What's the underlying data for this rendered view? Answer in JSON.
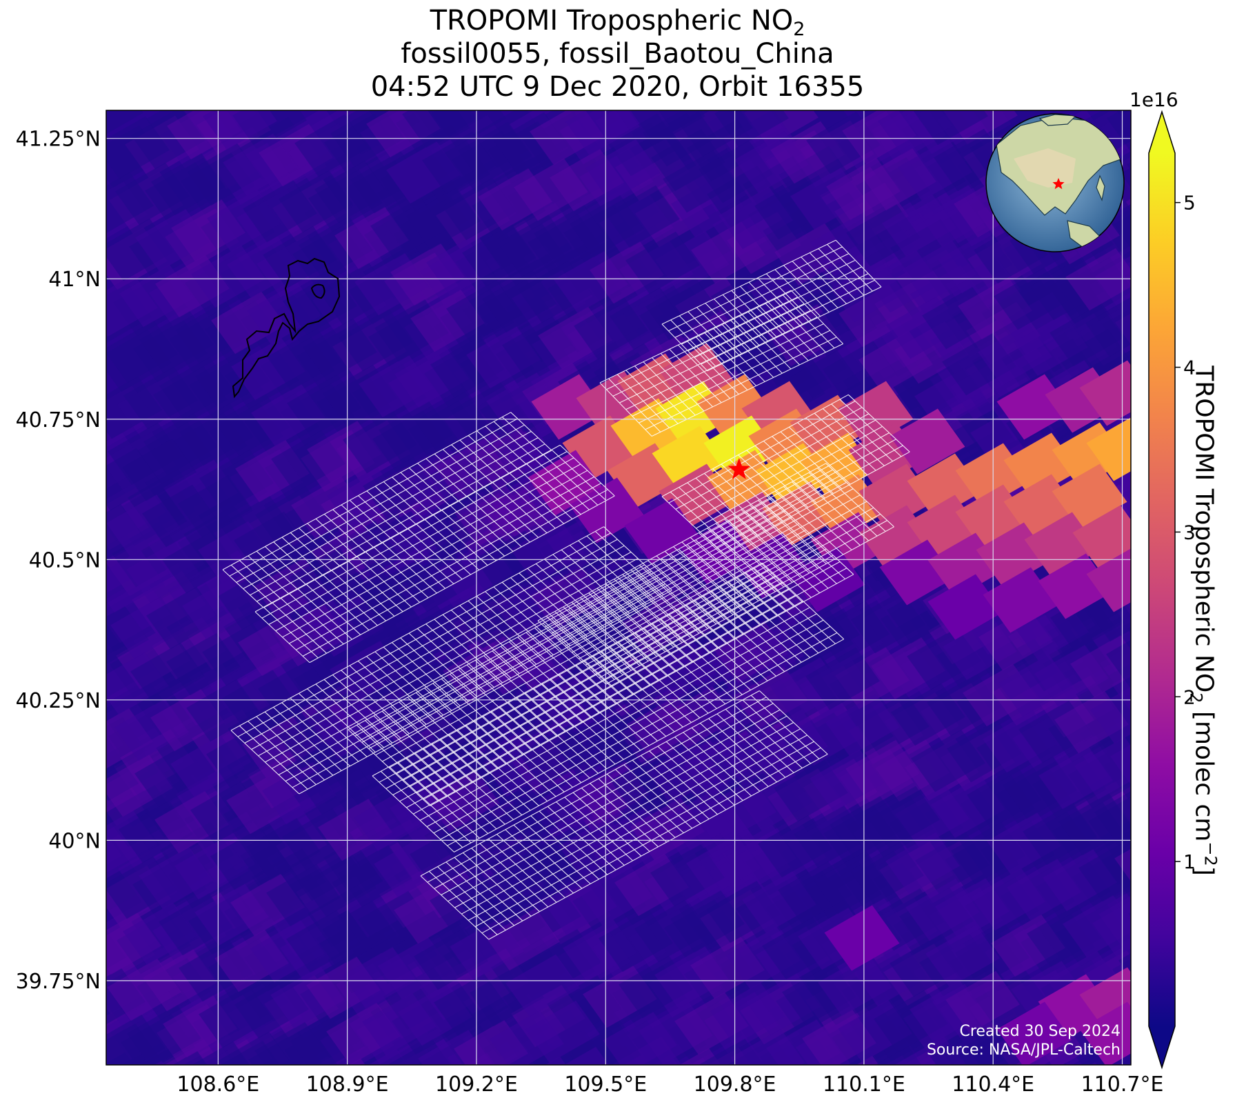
{
  "title": {
    "line1_prefix": "TROPOMI Tropospheric NO",
    "line1_sub": "2",
    "line2": "fossil0055, fossil_Baotou_China",
    "line3": "04:52 UTC 9 Dec 2020, Orbit 16355"
  },
  "map": {
    "lon_ticks": [
      "108.6°E",
      "108.9°E",
      "109.2°E",
      "109.5°E",
      "109.8°E",
      "110.1°E",
      "110.4°E",
      "110.7°E"
    ],
    "lat_ticks": [
      "41.25°N",
      "41°N",
      "40.75°N",
      "40.5°N",
      "40.25°N",
      "40°N",
      "39.75°N"
    ],
    "lon_values": [
      108.6,
      108.9,
      109.2,
      109.5,
      109.8,
      110.1,
      110.4,
      110.7
    ],
    "lat_values": [
      41.25,
      41.0,
      40.75,
      40.5,
      40.25,
      40.0,
      39.75
    ],
    "lon_range": [
      108.34,
      110.72
    ],
    "lat_range": [
      39.6,
      41.3
    ],
    "source_marker": {
      "lon": 109.81,
      "lat": 40.66,
      "symbol": "star",
      "color": "#ff0000"
    },
    "background_color": "#2a0593",
    "grid_color": "#dcdcf0"
  },
  "colorbar": {
    "exponent_label": "1e16",
    "ticks": [
      "1",
      "2",
      "3",
      "4",
      "5"
    ],
    "tick_values": [
      1,
      2,
      3,
      4,
      5
    ],
    "range": [
      0.0,
      5.3
    ],
    "colormap": "plasma",
    "extend": "both",
    "label_prefix": "TROPOMI Tropospheric NO",
    "label_sub": "2",
    "label_units_prefix": " [molec cm",
    "label_sup": "−2",
    "label_units_suffix": "]"
  },
  "credits": {
    "created": "Created 30 Sep 2024",
    "source": "Source: NASA/JPL-Caltech"
  },
  "inset_globe": {
    "marker": "star",
    "marker_color": "#ff0000"
  }
}
